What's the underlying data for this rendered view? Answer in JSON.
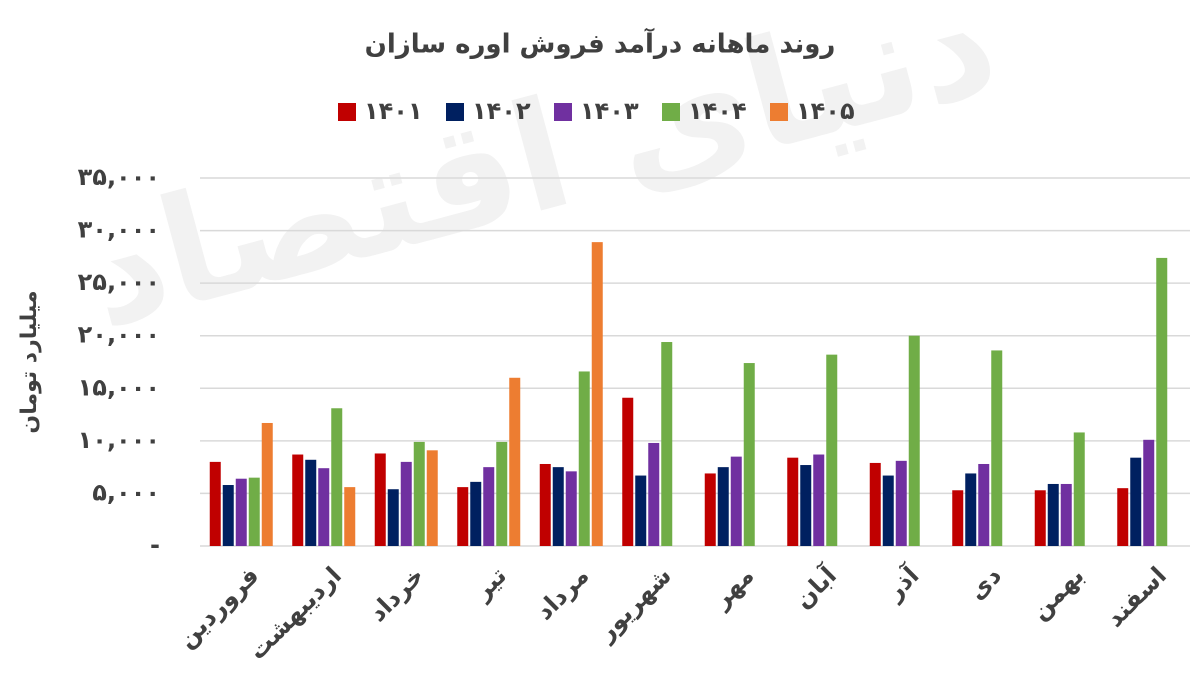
{
  "chart_data": {
    "type": "bar",
    "title": "روند ماهانه درآمد فروش اوره سازان",
    "watermark": "دنیای اقتصاد",
    "y_label": "میلیارد تومان",
    "categories": [
      "فروردین",
      "اردیبهشت",
      "خرداد",
      "تیر",
      "مرداد",
      "شهریور",
      "مهر",
      "آبان",
      "آذر",
      "دی",
      "بهمن",
      "اسفند"
    ],
    "series": [
      {
        "name": "۱۴۰۱",
        "color": "#c00000",
        "values": [
          8000,
          8700,
          8800,
          5600,
          7800,
          14100,
          6900,
          8400,
          7900,
          5300,
          5300,
          5500
        ]
      },
      {
        "name": "۱۴۰۲",
        "color": "#002060",
        "values": [
          5800,
          8200,
          5400,
          6100,
          7500,
          6700,
          7500,
          7700,
          6700,
          6900,
          5900,
          8400
        ]
      },
      {
        "name": "۱۴۰۳",
        "color": "#7030a0",
        "values": [
          6400,
          7400,
          8000,
          7500,
          7100,
          9800,
          8500,
          8700,
          8100,
          7800,
          5900,
          10100
        ]
      },
      {
        "name": "۱۴۰۴",
        "color": "#70ad47",
        "values": [
          6500,
          13100,
          9900,
          9900,
          16600,
          19400,
          17400,
          18200,
          20000,
          18600,
          10800,
          27400
        ]
      },
      {
        "name": "۱۴۰۵",
        "color": "#ed7d31",
        "values": [
          11700,
          5600,
          9100,
          16000,
          28900,
          null,
          null,
          null,
          null,
          null,
          null,
          null
        ]
      }
    ],
    "ylim": [
      0,
      35000
    ],
    "yticks": [
      {
        "value": 0,
        "label": "-"
      },
      {
        "value": 5000,
        "label": "۵,۰۰۰"
      },
      {
        "value": 10000,
        "label": "۱۰,۰۰۰"
      },
      {
        "value": 15000,
        "label": "۱۵,۰۰۰"
      },
      {
        "value": 20000,
        "label": "۲۰,۰۰۰"
      },
      {
        "value": 25000,
        "label": "۲۵,۰۰۰"
      },
      {
        "value": 30000,
        "label": "۳۰,۰۰۰"
      },
      {
        "value": 35000,
        "label": "۳۵,۰۰۰"
      }
    ],
    "grid": true
  }
}
